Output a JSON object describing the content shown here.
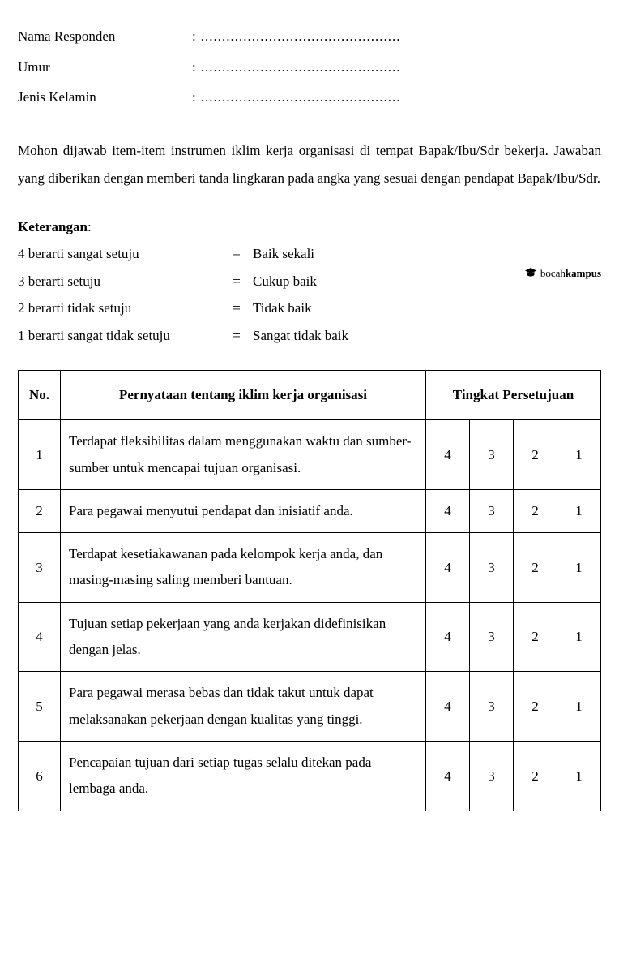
{
  "form_fields": [
    {
      "label": "Nama Responden",
      "blank": "..............................................."
    },
    {
      "label": "Umur",
      "blank": "..............................................."
    },
    {
      "label": "Jenis Kelamin",
      "blank": "..............................................."
    }
  ],
  "instructions": "Mohon dijawab item-item instrumen iklim kerja organisasi di tempat Bapak/Ibu/Sdr bekerja. Jawaban yang diberikan dengan memberi tanda lingkaran pada angka yang sesuai dengan pendapat Bapak/Ibu/Sdr.",
  "legend": {
    "title": "Keterangan",
    "colon": ":",
    "items": [
      {
        "left": "4 berarti sangat setuju",
        "eq": "=",
        "right": "Baik sekali"
      },
      {
        "left": "3 berarti setuju",
        "eq": "=",
        "right": "Cukup baik"
      },
      {
        "left": "2 berarti tidak setuju",
        "eq": "=",
        "right": "Tidak baik"
      },
      {
        "left": "1 berarti sangat tidak setuju",
        "eq": "=",
        "right": "Sangat tidak baik"
      }
    ]
  },
  "watermark": {
    "light": "bocah",
    "bold": "kampus"
  },
  "table": {
    "headers": {
      "no": "No.",
      "statement": "Pernyataan tentang iklim kerja organisasi",
      "agreement": "Tingkat Persetujuan"
    },
    "rating_values": [
      "4",
      "3",
      "2",
      "1"
    ],
    "rows": [
      {
        "no": "1",
        "statement": "Terdapat fleksibilitas dalam menggunakan waktu dan sumber-sumber untuk mencapai tujuan organisasi."
      },
      {
        "no": "2",
        "statement": "Para pegawai menyutui pendapat dan inisiatif anda."
      },
      {
        "no": "3",
        "statement": "Terdapat kesetiakawanan pada kelompok kerja anda, dan masing-masing saling memberi bantuan."
      },
      {
        "no": "4",
        "statement": "Tujuan setiap pekerjaan yang anda kerjakan didefinisikan dengan jelas."
      },
      {
        "no": "5",
        "statement": "Para pegawai merasa bebas dan tidak takut untuk dapat melaksanakan pekerjaan dengan kualitas yang tinggi."
      },
      {
        "no": "6",
        "statement": "Pencapaian tujuan dari setiap tugas selalu ditekan pada lembaga anda."
      }
    ]
  }
}
